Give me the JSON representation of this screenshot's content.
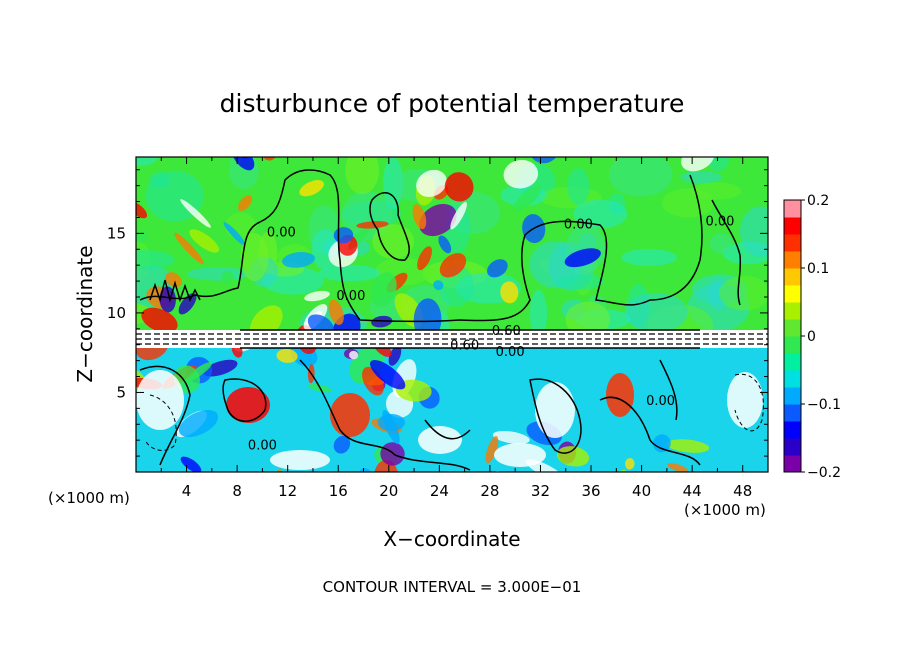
{
  "chart_data": {
    "type": "heatmap",
    "title": "disturbunce of potential temperature",
    "xlabel": "X−coordinate",
    "ylabel": "Z−coordinate",
    "x_unit_label": "(×1000 m)",
    "y_unit_label": "(×1000 m)",
    "xlim": [
      0,
      50
    ],
    "ylim": [
      0,
      19.8
    ],
    "x_ticks": [
      4,
      8,
      12,
      16,
      20,
      24,
      28,
      32,
      36,
      40,
      44,
      48
    ],
    "y_ticks": [
      5,
      10,
      15
    ],
    "footer": "CONTOUR INTERVAL = 3.000E−01",
    "contour_labels": [
      {
        "text": "0.00",
        "x": 11.5,
        "z": 14.8
      },
      {
        "text": "0.00",
        "x": 17.0,
        "z": 10.8
      },
      {
        "text": "0.00",
        "x": 35.0,
        "z": 15.3
      },
      {
        "text": "0.00",
        "x": 46.2,
        "z": 15.5
      },
      {
        "text": "0.60",
        "x": 29.3,
        "z": 8.6
      },
      {
        "text": "0.60",
        "x": 26.0,
        "z": 7.7
      },
      {
        "text": "0.00",
        "x": 29.6,
        "z": 7.3
      },
      {
        "text": "0.00",
        "x": 41.5,
        "z": 4.2
      },
      {
        "text": "0.00",
        "x": 10.0,
        "z": 1.4
      }
    ],
    "colorbar": {
      "min": -0.2,
      "max": 0.2,
      "tick_labels": [
        "0.2",
        "0.1",
        "0",
        "−0.1",
        "−0.2"
      ],
      "tick_values": [
        0.2,
        0.1,
        0,
        -0.1,
        -0.2
      ],
      "colors_low_to_high": [
        "#7a00a8",
        "#2a00c8",
        "#0000ff",
        "#0a5aff",
        "#00aaff",
        "#00e0e0",
        "#00f0a0",
        "#30e850",
        "#60e830",
        "#a8f000",
        "#ffff00",
        "#ffc800",
        "#ff8000",
        "#ff3000",
        "#ff0000",
        "#ff90a0"
      ]
    },
    "regions": {
      "upper_value_approx": 0.0,
      "lower_mixed_range": [
        -0.2,
        0.2
      ]
    }
  }
}
